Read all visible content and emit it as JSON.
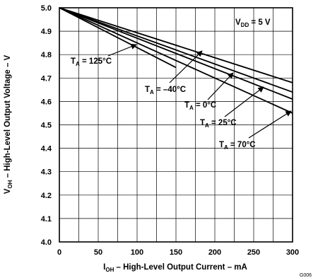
{
  "chart_data": {
    "type": "line",
    "figure_id": "G006",
    "xlabel": {
      "sym": "I",
      "sub": "OH",
      "text": " – High-Level Output Current – mA"
    },
    "ylabel": {
      "sym": "V",
      "sub": "OH",
      "text": " – High-Level Output Voltage – V"
    },
    "xlim": [
      0,
      300
    ],
    "ylim": [
      4.0,
      5.0
    ],
    "x_ticks": [
      "0",
      "50",
      "100",
      "150",
      "200",
      "250",
      "300"
    ],
    "y_ticks": [
      "4.0",
      "4.1",
      "4.2",
      "4.3",
      "4.4",
      "4.5",
      "4.6",
      "4.7",
      "4.8",
      "4.9",
      "5.0"
    ],
    "grid": true,
    "condition": {
      "sym": "V",
      "sub": "DD",
      "text": " = 5 V"
    },
    "series": [
      {
        "name": "125°C",
        "label": {
          "sym": "T",
          "sub": "A",
          "text": " = 125°C"
        },
        "x": [
          0,
          150
        ],
        "y": [
          5.0,
          4.745
        ]
      },
      {
        "name": "–40°C",
        "label": {
          "sym": "T",
          "sub": "A",
          "text": " = –40°C"
        },
        "x": [
          0,
          300
        ],
        "y": [
          5.0,
          4.68
        ]
      },
      {
        "name": "0°C",
        "label": {
          "sym": "T",
          "sub": "A",
          "text": " = 0°C"
        },
        "x": [
          0,
          300
        ],
        "y": [
          5.0,
          4.64
        ]
      },
      {
        "name": "25°C",
        "label": {
          "sym": "T",
          "sub": "A",
          "text": " = 25°C"
        },
        "x": [
          0,
          300
        ],
        "y": [
          5.0,
          4.61
        ]
      },
      {
        "name": "70°C",
        "label": {
          "sym": "T",
          "sub": "A",
          "text": " = 70°C"
        },
        "x": [
          0,
          300
        ],
        "y": [
          5.0,
          4.55
        ]
      }
    ]
  }
}
